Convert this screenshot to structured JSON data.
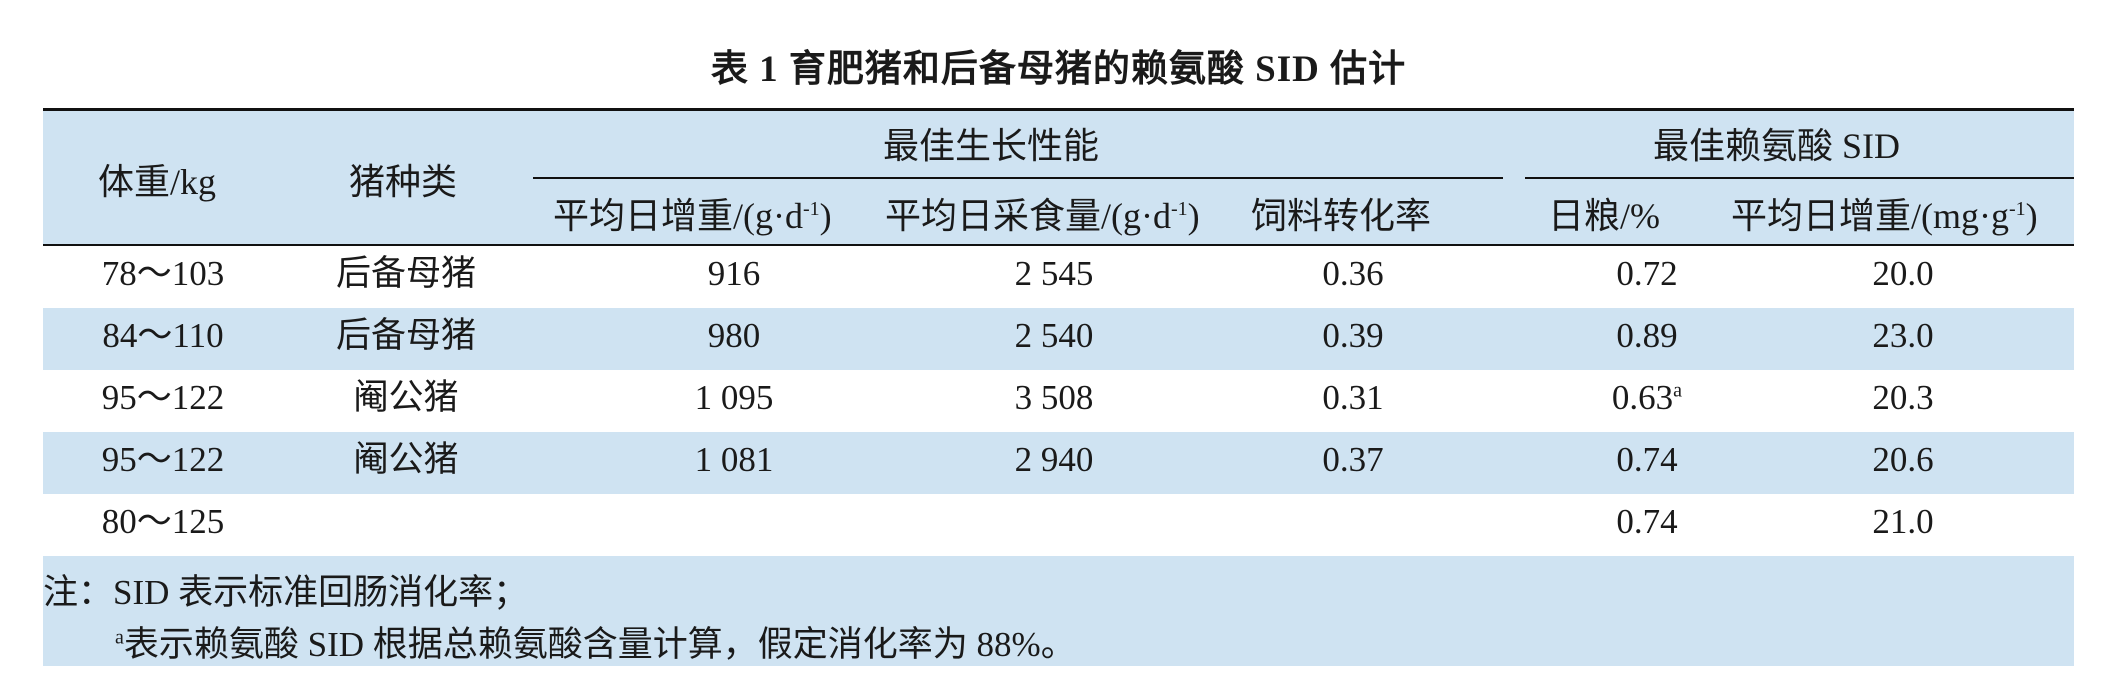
{
  "title": "表 1  育肥猪和后备母猪的赖氨酸 SID 估计",
  "header": {
    "col_weight": "体重/kg",
    "col_type": "猪种类",
    "group_performance": "最佳生长性能",
    "col_adg": "平均日增重/(g·d",
    "col_adg_sup": "-1",
    "col_adg_close": ")",
    "col_adfi": "平均日采食量/(g·d",
    "col_adfi_sup": "-1",
    "col_adfi_close": ")",
    "col_fcr": "饲料转化率",
    "group_sid": "最佳赖氨酸 SID",
    "col_diet": "日粮/%",
    "col_sid_gain": "平均日增重/(mg·g",
    "col_sid_gain_sup": "-1",
    "col_sid_gain_close": ")"
  },
  "rows": [
    {
      "weight": "78～103",
      "type": "后备母猪",
      "adg": "916",
      "adfi": "2 545",
      "fcr": "0.36",
      "diet": "0.72",
      "diet_sup": "",
      "sid_gain": "20.0"
    },
    {
      "weight": "84～110",
      "type": "后备母猪",
      "adg": "980",
      "adfi": "2 540",
      "fcr": "0.39",
      "diet": "0.89",
      "diet_sup": "",
      "sid_gain": "23.0"
    },
    {
      "weight": "95～122",
      "type": "阉公猪",
      "adg": "1 095",
      "adfi": "3 508",
      "fcr": "0.31",
      "diet": "0.63",
      "diet_sup": "a",
      "sid_gain": "20.3"
    },
    {
      "weight": "95～122",
      "type": "阉公猪",
      "adg": "1 081",
      "adfi": "2 940",
      "fcr": "0.37",
      "diet": "0.74",
      "diet_sup": "",
      "sid_gain": "20.6"
    },
    {
      "weight": "80～125",
      "type": "",
      "adg": "",
      "adfi": "",
      "fcr": "",
      "diet": "0.74",
      "diet_sup": "",
      "sid_gain": "21.0"
    }
  ],
  "notes": {
    "line1": "注：SID 表示标准回肠消化率；",
    "line2_sup": "a",
    "line2": "表示赖氨酸 SID 根据总赖氨酸含量计算，假定消化率为 88%。"
  },
  "colors": {
    "band": "#cfe3f2",
    "rule": "#111111"
  }
}
